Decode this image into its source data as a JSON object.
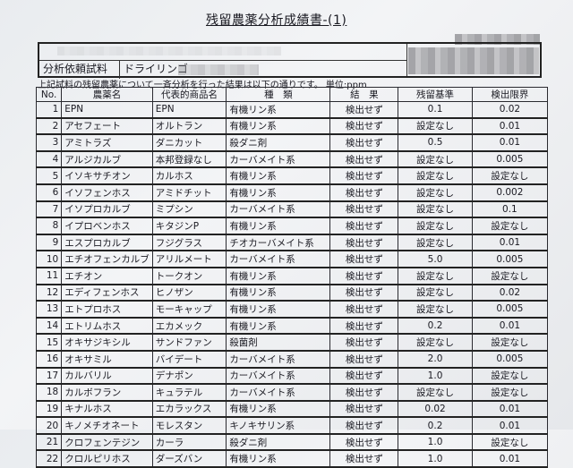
{
  "title": "残留農薬分析成績書-(1)",
  "info": {
    "sample_label": "分析依頼試料",
    "sample_value": "ドライリンゴ"
  },
  "note": "上記試料の残留農薬について一斉分析を行った結果は以下の通りです。 単位:ppm",
  "headers": [
    "No.",
    "農薬名",
    "代表的商品名",
    "種　類",
    "結　果",
    "残留基準",
    "検出限界"
  ],
  "rows": [
    [
      "1",
      "EPN",
      "EPN",
      "有機リン系",
      "検出せず",
      "0.1",
      "0.02"
    ],
    [
      "2",
      "アセフェート",
      "オルトラン",
      "有機リン系",
      "検出せず",
      "設定なし",
      "0.01"
    ],
    [
      "3",
      "アミトラズ",
      "ダニカット",
      "殺ダニ剤",
      "検出せず",
      "0.5",
      "0.01"
    ],
    [
      "4",
      "アルジカルブ",
      "本邦登録なし",
      "カーバメイト系",
      "検出せず",
      "設定なし",
      "0.005"
    ],
    [
      "5",
      "イソキサチオン",
      "カルホス",
      "有機リン系",
      "検出せず",
      "設定なし",
      "設定なし"
    ],
    [
      "6",
      "イソフェンホス",
      "アミドチット",
      "有機リン系",
      "検出せず",
      "設定なし",
      "0.002"
    ],
    [
      "7",
      "イソプロカルブ",
      "ミプシン",
      "カーバメイト系",
      "検出せず",
      "設定なし",
      "0.1"
    ],
    [
      "8",
      "イプロベンホス",
      "キタジンP",
      "有機リン系",
      "検出せず",
      "設定なし",
      "設定なし"
    ],
    [
      "9",
      "エスプロカルブ",
      "フジグラス",
      "チオカーバメイト系",
      "検出せず",
      "設定なし",
      "0.01"
    ],
    [
      "10",
      "エチオフェンカルブ",
      "アリルメート",
      "カーバメイト系",
      "検出せず",
      "5.0",
      "0.005"
    ],
    [
      "11",
      "エチオン",
      "トークオン",
      "有機リン系",
      "検出せず",
      "設定なし",
      "設定なし"
    ],
    [
      "12",
      "エディフェンホス",
      "ヒノザン",
      "有機リン系",
      "検出せず",
      "設定なし",
      "0.02"
    ],
    [
      "13",
      "エトプロホス",
      "モーキャップ",
      "有機リン系",
      "検出せず",
      "設定なし",
      "0.005"
    ],
    [
      "14",
      "エトリムホス",
      "エカメック",
      "有機リン系",
      "検出せず",
      "0.2",
      "0.01"
    ],
    [
      "15",
      "オキサジキシル",
      "サンドファン",
      "殺菌剤",
      "検出せず",
      "設定なし",
      "設定なし"
    ],
    [
      "16",
      "オキサミル",
      "バイデート",
      "カーバメイト系",
      "検出せず",
      "2.0",
      "0.005"
    ],
    [
      "17",
      "カルバリル",
      "デナポン",
      "カーバメイト系",
      "検出せず",
      "1.0",
      "設定なし"
    ],
    [
      "18",
      "カルボフラン",
      "キュラテル",
      "カーバメイト系",
      "検出せず",
      "設定なし",
      "設定なし"
    ],
    [
      "19",
      "キナルホス",
      "エカラックス",
      "有機リン系",
      "検出せず",
      "0.02",
      "0.01"
    ],
    [
      "20",
      "キノメチオネート",
      "モレスタン",
      "キノキサリン系",
      "検出せず",
      "0.2",
      "0.01"
    ],
    [
      "21",
      "クロフェンテジン",
      "カーラ",
      "殺ダニ剤",
      "検出せず",
      "1.0",
      "設定なし"
    ],
    [
      "22",
      "クロルピリホス",
      "ダーズバン",
      "有機リン系",
      "検出せず",
      "1.0",
      "0.01"
    ]
  ]
}
